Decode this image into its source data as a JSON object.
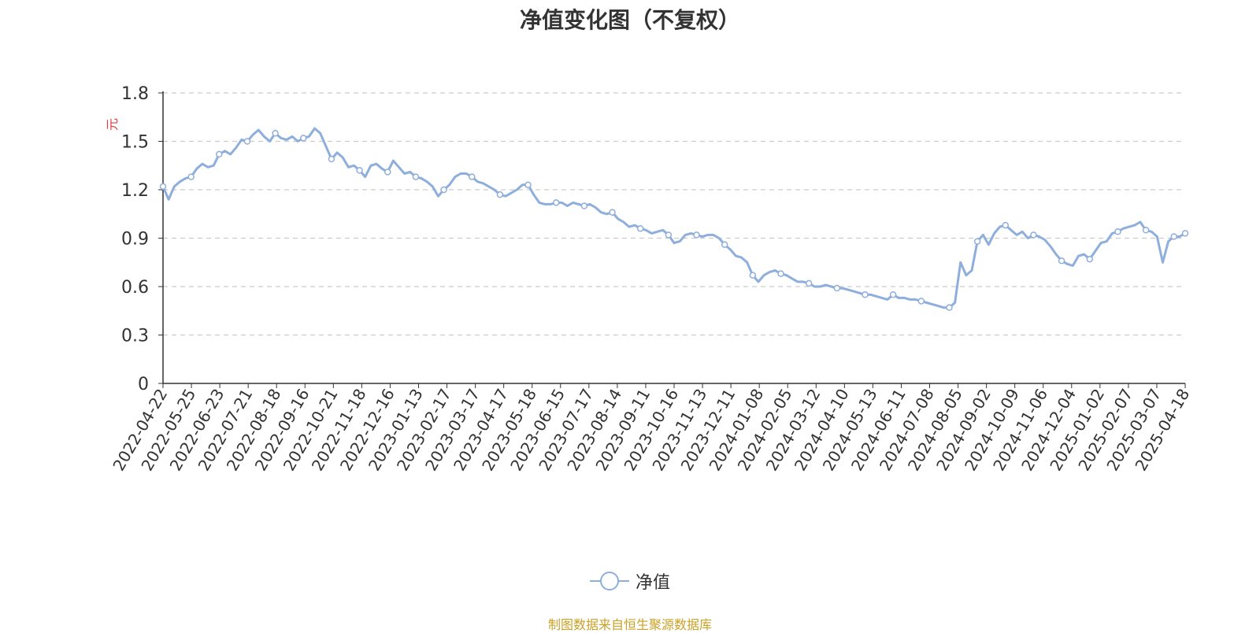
{
  "chart_data": {
    "type": "line",
    "title": "净值变化图（不复权）",
    "ylabel": "元",
    "ylim": [
      0,
      1.8
    ],
    "yticks": [
      "0",
      "0.3",
      "0.6",
      "0.9",
      "1.2",
      "1.5",
      "1.8"
    ],
    "grid": true,
    "legend_position": "bottom-center",
    "x_tick_labels": [
      "2022-04-22",
      "2022-05-25",
      "2022-06-23",
      "2022-07-21",
      "2022-08-18",
      "2022-09-16",
      "2022-10-21",
      "2022-11-18",
      "2022-12-16",
      "2023-01-13",
      "2023-02-17",
      "2023-03-17",
      "2023-04-17",
      "2023-05-18",
      "2023-06-15",
      "2023-07-17",
      "2023-08-14",
      "2023-09-11",
      "2023-10-16",
      "2023-11-13",
      "2023-12-11",
      "2024-01-08",
      "2024-02-05",
      "2024-03-12",
      "2024-04-10",
      "2024-05-13",
      "2024-06-11",
      "2024-07-08",
      "2024-08-05",
      "2024-09-02",
      "2024-10-09",
      "2024-11-06",
      "2024-12-04",
      "2025-01-02",
      "2025-02-07",
      "2025-03-07",
      "2025-04-18"
    ],
    "series": [
      {
        "name": "净值",
        "color": "#8eaedc",
        "values": [
          1.22,
          1.14,
          1.22,
          1.25,
          1.27,
          1.28,
          1.33,
          1.36,
          1.34,
          1.35,
          1.42,
          1.44,
          1.42,
          1.46,
          1.51,
          1.5,
          1.54,
          1.57,
          1.53,
          1.5,
          1.55,
          1.52,
          1.51,
          1.53,
          1.5,
          1.52,
          1.53,
          1.58,
          1.55,
          1.47,
          1.39,
          1.43,
          1.4,
          1.34,
          1.35,
          1.32,
          1.28,
          1.35,
          1.36,
          1.33,
          1.31,
          1.38,
          1.34,
          1.3,
          1.31,
          1.28,
          1.27,
          1.25,
          1.22,
          1.16,
          1.2,
          1.23,
          1.28,
          1.3,
          1.3,
          1.28,
          1.25,
          1.24,
          1.22,
          1.2,
          1.17,
          1.16,
          1.18,
          1.2,
          1.23,
          1.23,
          1.17,
          1.12,
          1.11,
          1.11,
          1.12,
          1.12,
          1.1,
          1.12,
          1.11,
          1.1,
          1.11,
          1.09,
          1.06,
          1.05,
          1.06,
          1.02,
          1.0,
          0.97,
          0.98,
          0.96,
          0.95,
          0.93,
          0.94,
          0.95,
          0.92,
          0.87,
          0.88,
          0.92,
          0.93,
          0.92,
          0.91,
          0.92,
          0.92,
          0.9,
          0.86,
          0.83,
          0.79,
          0.78,
          0.75,
          0.67,
          0.63,
          0.67,
          0.69,
          0.7,
          0.68,
          0.67,
          0.65,
          0.63,
          0.63,
          0.62,
          0.6,
          0.6,
          0.61,
          0.6,
          0.59,
          0.59,
          0.58,
          0.57,
          0.56,
          0.55,
          0.55,
          0.54,
          0.53,
          0.52,
          0.55,
          0.53,
          0.53,
          0.52,
          0.52,
          0.51,
          0.5,
          0.49,
          0.48,
          0.47,
          0.47,
          0.5,
          0.75,
          0.67,
          0.7,
          0.88,
          0.92,
          0.86,
          0.93,
          0.97,
          0.98,
          0.95,
          0.92,
          0.94,
          0.9,
          0.92,
          0.91,
          0.89,
          0.85,
          0.8,
          0.76,
          0.74,
          0.73,
          0.79,
          0.8,
          0.77,
          0.82,
          0.87,
          0.88,
          0.93,
          0.94,
          0.96,
          0.97,
          0.98,
          1.0,
          0.95,
          0.94,
          0.91,
          0.75,
          0.88,
          0.91,
          0.91,
          0.93
        ]
      }
    ],
    "source_note": "制图数据来自恒生聚源数据库"
  }
}
